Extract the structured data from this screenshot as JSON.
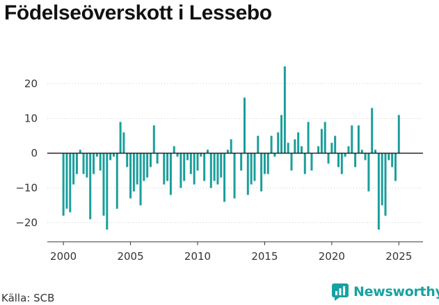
{
  "title": "Födelseöverskott i Lessebo",
  "source": "Källa: SCB",
  "logo_text": "Newsworthy",
  "colors": {
    "bar": "#1a9e9b",
    "zero_line": "#222222",
    "grid": "#cccccc",
    "brand": "#17a2a2"
  },
  "chart_data": {
    "type": "bar",
    "title": "Födelseöverskott i Lessebo",
    "xlabel": "",
    "ylabel": "",
    "frequency": "quarterly",
    "x_start": 2000.0,
    "x_step": 0.25,
    "xlim": [
      1998.8,
      2026.8
    ],
    "ylim": [
      -25.5,
      28.5
    ],
    "x_ticks": [
      2000,
      2005,
      2010,
      2015,
      2020,
      2025
    ],
    "y_ticks": [
      -20,
      -10,
      0,
      10,
      20
    ],
    "y_tick_labels": [
      "−20",
      "−10",
      "0",
      "10",
      "20"
    ],
    "grid": "y",
    "legend": "none",
    "values": [
      -18,
      -16,
      -17,
      -9,
      -6,
      1,
      -6,
      -7,
      -19,
      -6,
      -1,
      -5,
      -18,
      -22,
      -2,
      -1,
      -16,
      9,
      6,
      -4,
      -13,
      -11,
      -9,
      -15,
      -8,
      -7,
      -4,
      8,
      -3,
      0,
      -9,
      -8,
      -12,
      2,
      -1,
      -10,
      -8,
      -2,
      -6,
      -9,
      -5,
      -1,
      -8,
      1,
      -10,
      -8,
      -9,
      -7,
      -14,
      1,
      4,
      -13,
      0,
      -5,
      16,
      -12,
      -9,
      -8,
      5,
      -11,
      -6,
      -6,
      5,
      -1,
      6,
      11,
      25,
      3,
      -5,
      4,
      6,
      2,
      -6,
      9,
      -5,
      0,
      2,
      7,
      9,
      -3,
      3,
      5,
      -4,
      -6,
      -1,
      2,
      8,
      -4,
      8,
      1,
      -2,
      -11,
      13,
      1,
      -22,
      -15,
      -18,
      -2,
      -4,
      -8,
      11
    ]
  }
}
